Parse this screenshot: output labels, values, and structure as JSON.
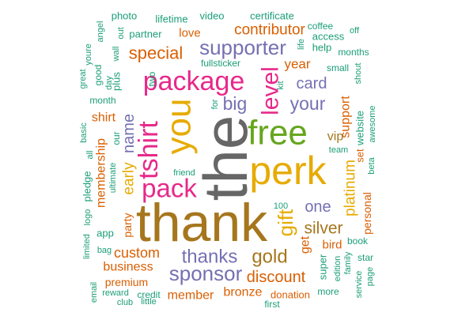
{
  "palette": {
    "green": "#1b9e77",
    "orange": "#d95f02",
    "purple": "#7570b3",
    "pink": "#e7298a",
    "lime": "#66a61e",
    "gold": "#e6ab02",
    "brown": "#a6761d",
    "gray": "#666666"
  },
  "words": [
    {
      "text": "thank",
      "color": "brown"
    },
    {
      "text": "the",
      "color": "gray"
    },
    {
      "text": "you",
      "color": "gold"
    },
    {
      "text": "perk",
      "color": "gold"
    },
    {
      "text": "free",
      "color": "lime"
    },
    {
      "text": "tshirt",
      "color": "pink"
    },
    {
      "text": "package",
      "color": "pink"
    },
    {
      "text": "pack",
      "color": "pink"
    },
    {
      "text": "level",
      "color": "pink"
    },
    {
      "text": "supporter",
      "color": "purple"
    },
    {
      "text": "sponsor",
      "color": "purple"
    },
    {
      "text": "thanks",
      "color": "purple"
    },
    {
      "text": "gift",
      "color": "gold"
    },
    {
      "text": "gold",
      "color": "brown"
    },
    {
      "text": "big",
      "color": "purple"
    },
    {
      "text": "your",
      "color": "purple"
    },
    {
      "text": "special",
      "color": "orange"
    },
    {
      "text": "discount",
      "color": "orange"
    },
    {
      "text": "name",
      "color": "purple"
    },
    {
      "text": "silver",
      "color": "brown"
    },
    {
      "text": "contributor",
      "color": "orange"
    },
    {
      "text": "card",
      "color": "purple"
    },
    {
      "text": "one",
      "color": "purple"
    },
    {
      "text": "early",
      "color": "gold"
    },
    {
      "text": "platinum",
      "color": "gold"
    },
    {
      "text": "custom",
      "color": "orange"
    },
    {
      "text": "bronze",
      "color": "orange"
    },
    {
      "text": "membership",
      "color": "orange"
    },
    {
      "text": "shirt",
      "color": "orange"
    },
    {
      "text": "year",
      "color": "orange"
    },
    {
      "text": "business",
      "color": "orange"
    },
    {
      "text": "member",
      "color": "orange"
    },
    {
      "text": "support",
      "color": "orange"
    },
    {
      "text": "vip",
      "color": "brown"
    },
    {
      "text": "get",
      "color": "orange"
    },
    {
      "text": "love",
      "color": "orange"
    },
    {
      "text": "bird",
      "color": "orange"
    },
    {
      "text": "party",
      "color": "orange"
    },
    {
      "text": "personal",
      "color": "orange"
    },
    {
      "text": "premium",
      "color": "orange"
    },
    {
      "text": "donation",
      "color": "orange"
    },
    {
      "text": "set",
      "color": "orange"
    },
    {
      "text": "super",
      "color": "green"
    },
    {
      "text": "website",
      "color": "green"
    },
    {
      "text": "photo",
      "color": "green"
    },
    {
      "text": "lifetime",
      "color": "green"
    },
    {
      "text": "video",
      "color": "green"
    },
    {
      "text": "certificate",
      "color": "green"
    },
    {
      "text": "coffee",
      "color": "green"
    },
    {
      "text": "access",
      "color": "green"
    },
    {
      "text": "off",
      "color": "green"
    },
    {
      "text": "angel",
      "color": "green"
    },
    {
      "text": "out",
      "color": "green"
    },
    {
      "text": "partner",
      "color": "green"
    },
    {
      "text": "youre",
      "color": "green"
    },
    {
      "text": "life",
      "color": "green"
    },
    {
      "text": "help",
      "color": "green"
    },
    {
      "text": "months",
      "color": "green"
    },
    {
      "text": "wall",
      "color": "green"
    },
    {
      "text": "fullsticker",
      "color": "green"
    },
    {
      "text": "small",
      "color": "green"
    },
    {
      "text": "shout",
      "color": "green"
    },
    {
      "text": "great",
      "color": "green"
    },
    {
      "text": "good",
      "color": "green"
    },
    {
      "text": "day",
      "color": "green"
    },
    {
      "text": "plus",
      "color": "green"
    },
    {
      "text": "two",
      "color": "green"
    },
    {
      "text": "kit",
      "color": "green"
    },
    {
      "text": "month",
      "color": "green"
    },
    {
      "text": "for",
      "color": "green"
    },
    {
      "text": "awesome",
      "color": "green"
    },
    {
      "text": "beta",
      "color": "green"
    },
    {
      "text": "basic",
      "color": "green"
    },
    {
      "text": "our",
      "color": "green"
    },
    {
      "text": "all",
      "color": "green"
    },
    {
      "text": "team",
      "color": "green"
    },
    {
      "text": "ultimate",
      "color": "green"
    },
    {
      "text": "friend",
      "color": "green"
    },
    {
      "text": "pledge",
      "color": "green"
    },
    {
      "text": "100",
      "color": "green"
    },
    {
      "text": "logo",
      "color": "green"
    },
    {
      "text": "app",
      "color": "green"
    },
    {
      "text": "book",
      "color": "green"
    },
    {
      "text": "limited",
      "color": "green"
    },
    {
      "text": "bag",
      "color": "green"
    },
    {
      "text": "star",
      "color": "green"
    },
    {
      "text": "edition",
      "color": "green"
    },
    {
      "text": "family",
      "color": "green"
    },
    {
      "text": "service",
      "color": "green"
    },
    {
      "text": "page",
      "color": "green"
    },
    {
      "text": "email",
      "color": "green"
    },
    {
      "text": "reward",
      "color": "green"
    },
    {
      "text": "credit",
      "color": "green"
    },
    {
      "text": "club",
      "color": "green"
    },
    {
      "text": "little",
      "color": "green"
    },
    {
      "text": "first",
      "color": "green"
    },
    {
      "text": "more",
      "color": "green"
    }
  ]
}
